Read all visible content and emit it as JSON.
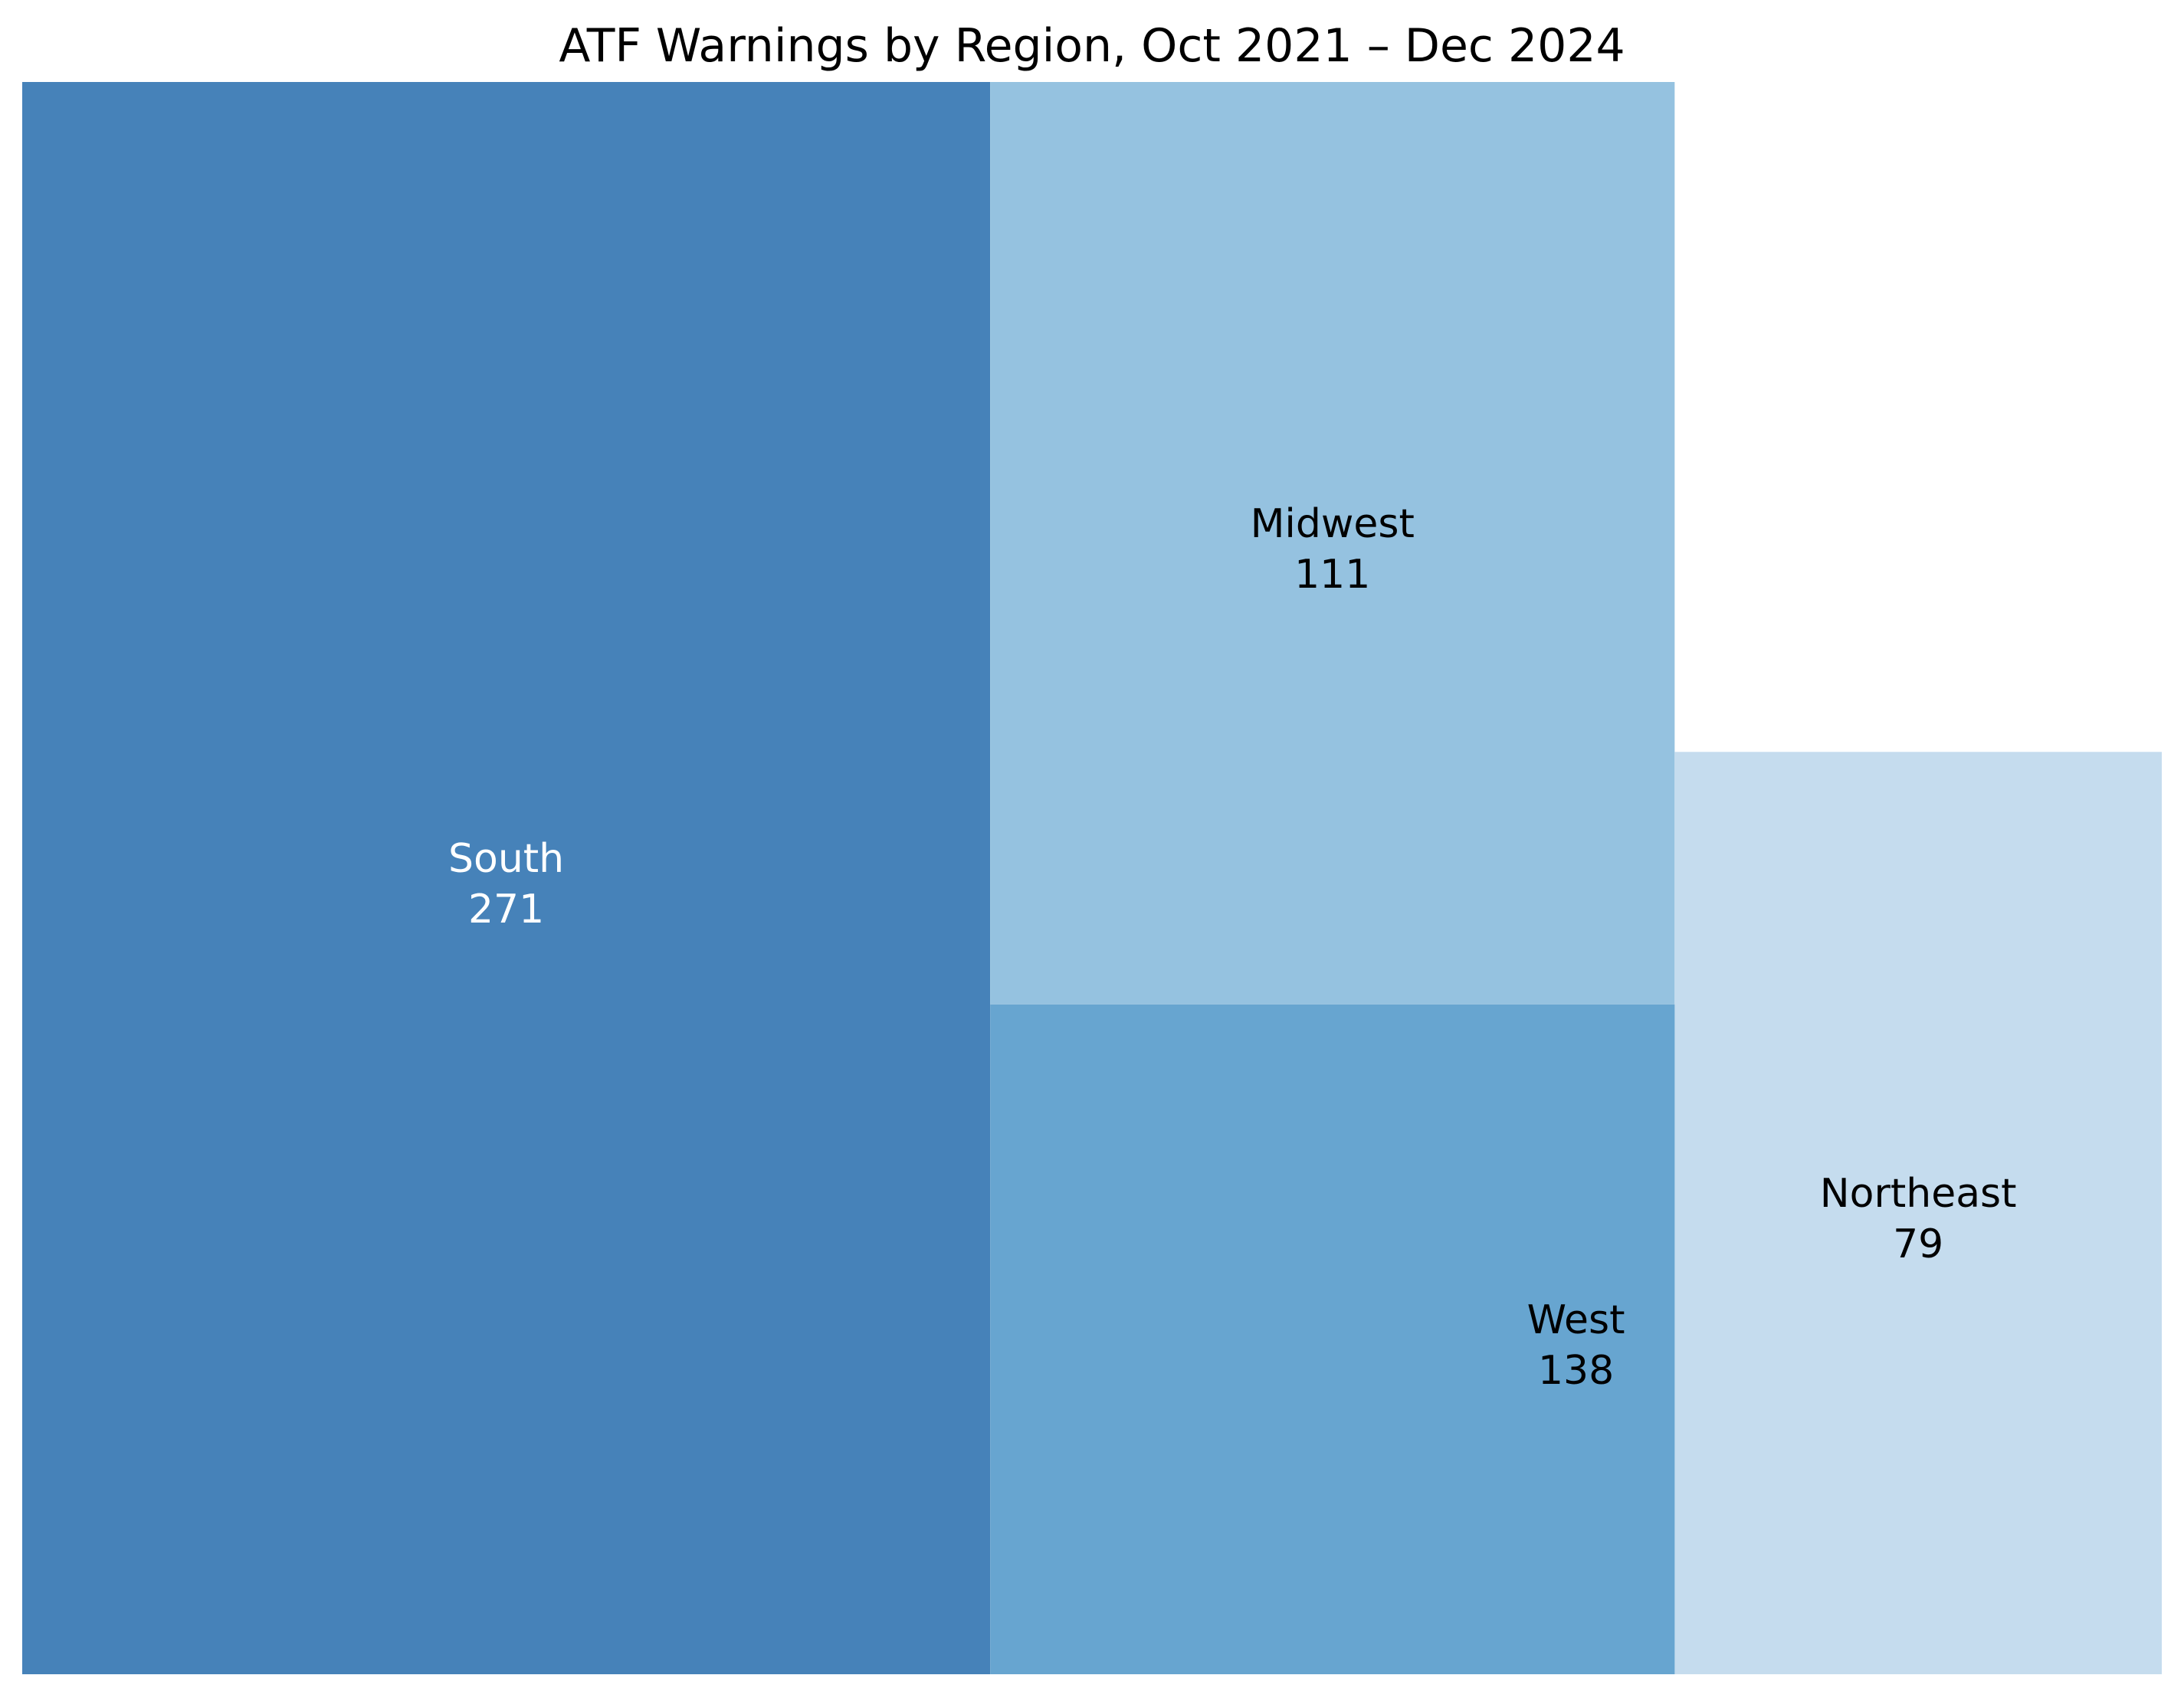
{
  "chart_data": {
    "type": "treemap",
    "title": "ATF Warnings by Region, Oct 2021 – Dec 2024",
    "xlabel": "",
    "ylabel": "",
    "grid": false,
    "legend": "none",
    "categories": [
      "South",
      "West",
      "Midwest",
      "Northeast"
    ],
    "values": [
      271,
      138,
      111,
      79
    ],
    "colors": [
      "#4682b9",
      "#67a5d0",
      "#95c2e0",
      "#c5dcee"
    ],
    "label_colors": [
      "#ffffff",
      "#000000",
      "#000000",
      "#000000"
    ]
  }
}
